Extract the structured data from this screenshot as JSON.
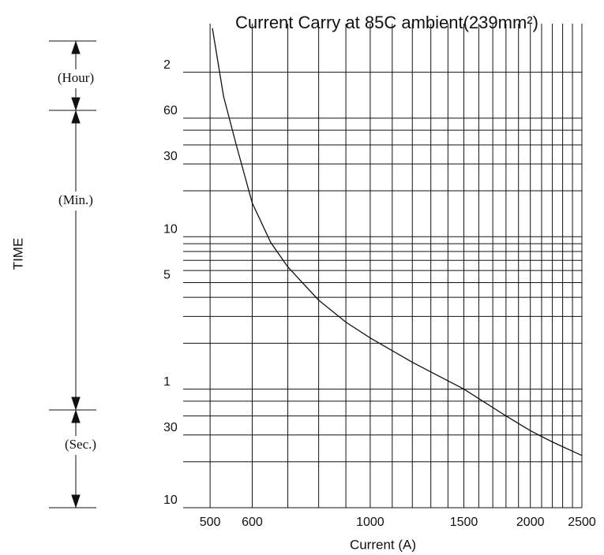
{
  "chart_data": {
    "type": "line",
    "title": "Current Carry at 85C ambient(239mm²)",
    "x_label": "Current (A)",
    "y_label": "TIME",
    "annotations": [
      "(Hour)",
      "(Min.)",
      "(Sec.)"
    ],
    "x": [
      505,
      530,
      560,
      600,
      650,
      700,
      800,
      900,
      1000,
      1200,
      1500,
      1800,
      2000,
      2200,
      2500
    ],
    "values": [
      14000,
      5000,
      2400,
      1000,
      550,
      380,
      230,
      165,
      130,
      90,
      60,
      40,
      32,
      27,
      22
    ],
    "color": "#111111",
    "xlog": true,
    "ylog": true,
    "grid": true,
    "xlim": [
      445,
      2500
    ],
    "ylim": [
      10,
      15000
    ],
    "xticks": [
      500,
      600,
      1000,
      1500,
      2000,
      2500
    ],
    "x_minor_ticks": [
      700,
      800,
      900,
      1100,
      1200,
      1300,
      1400,
      1600,
      1700,
      1800,
      1900,
      2100,
      2200,
      2300,
      2400
    ],
    "yticks": [
      10,
      30,
      {
        "value": 60,
        "label": "1"
      },
      {
        "value": 300,
        "label": "5"
      },
      {
        "value": 600,
        "label": "10"
      },
      {
        "value": 1800,
        "label": "30"
      },
      {
        "value": 3600,
        "label": "60"
      },
      {
        "value": 7200,
        "label": "2"
      }
    ],
    "y_minor_ticks": [
      20,
      40,
      50,
      120,
      180,
      240,
      360,
      420,
      480,
      540,
      1200,
      2400,
      3000
    ]
  }
}
